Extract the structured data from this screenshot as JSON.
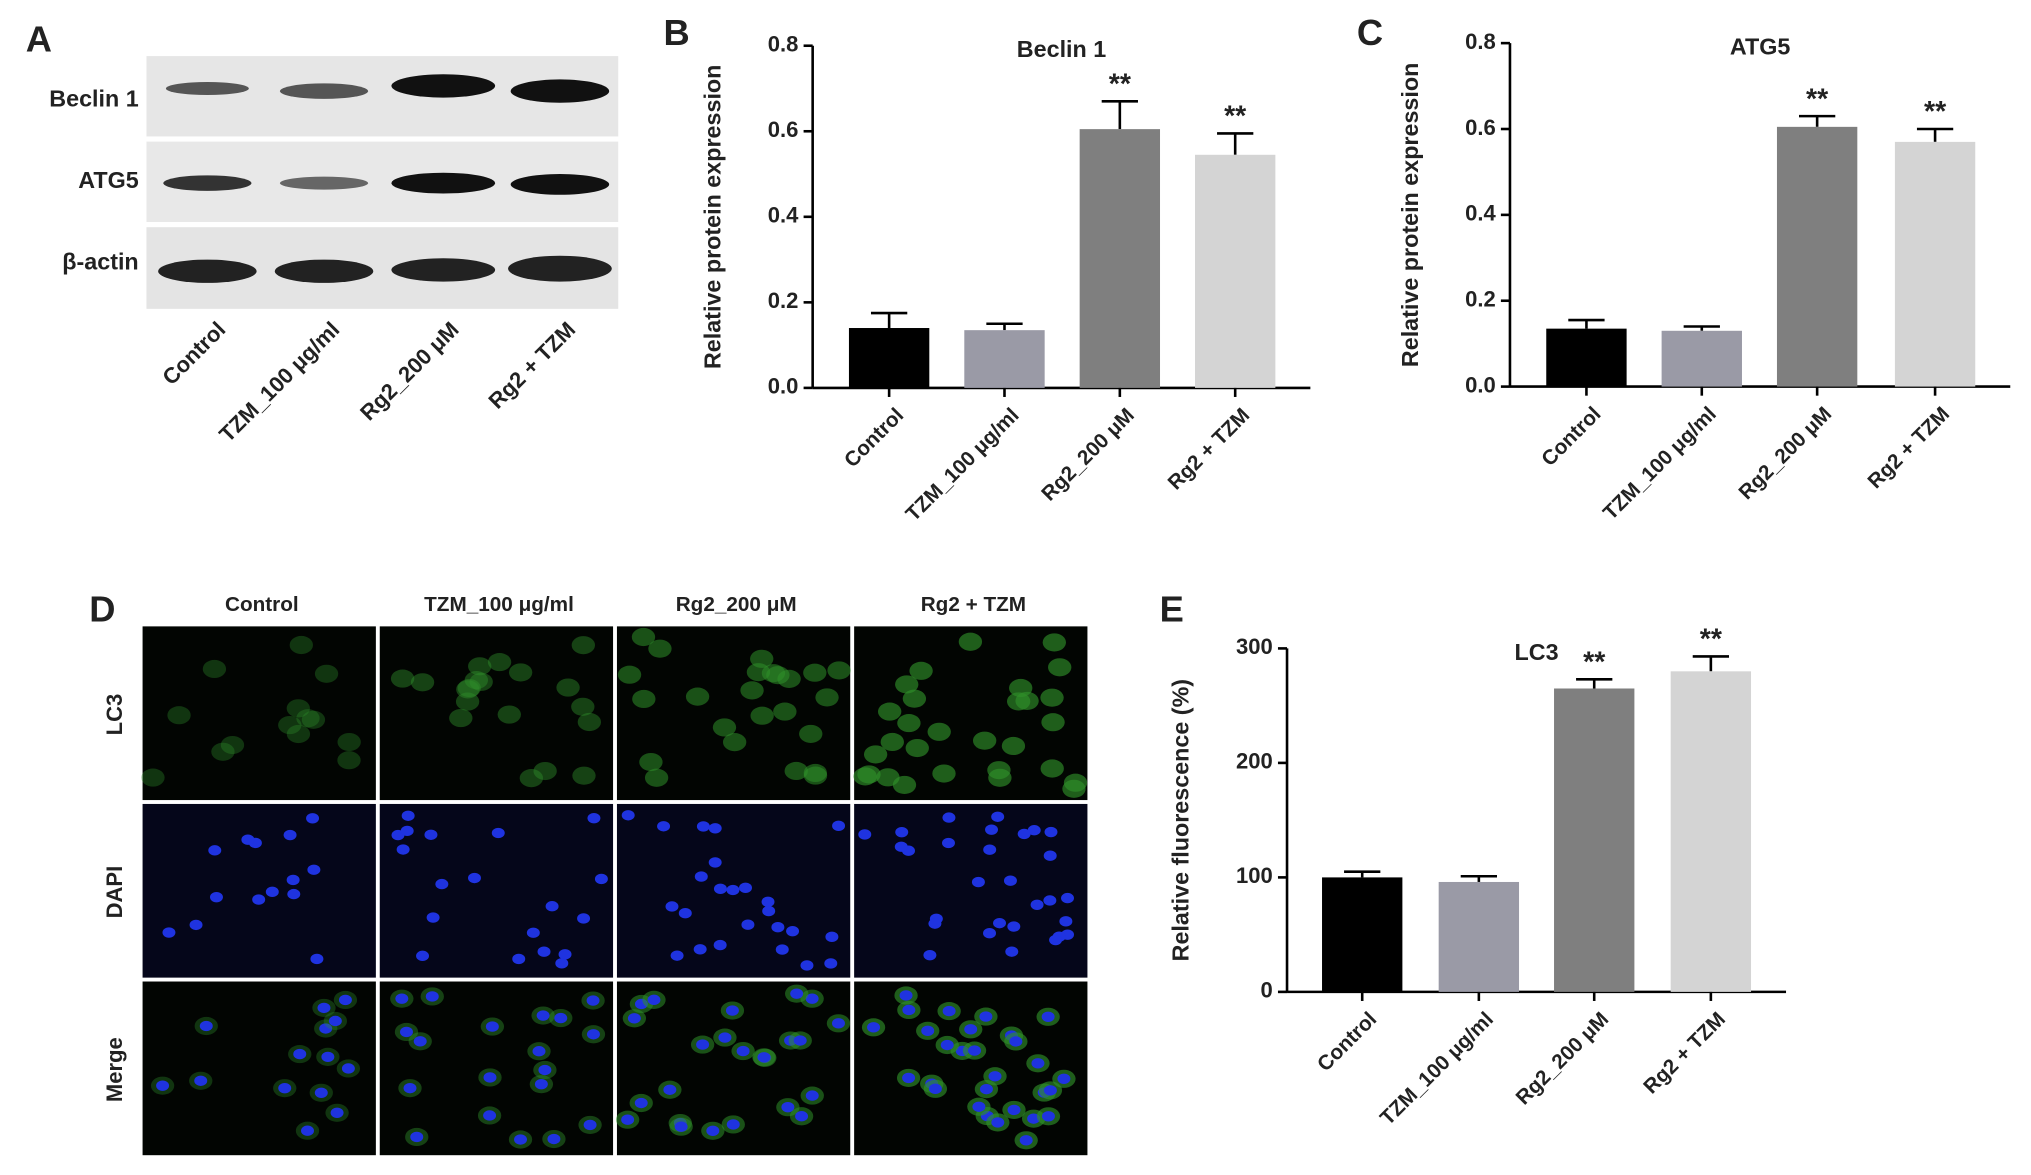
{
  "figure": {
    "panel_labels": [
      "A",
      "B",
      "C",
      "D",
      "E"
    ]
  },
  "blot": {
    "rows": [
      "Beclin 1",
      "ATG5",
      "β-actin"
    ],
    "lanes": [
      "Control",
      "TZM_100 μg/ml",
      "Rg2_200 μM",
      "Rg2 + TZM"
    ]
  },
  "microscopy": {
    "columns": [
      "Control",
      "TZM_100 μg/ml",
      "Rg2_200 μM",
      "Rg2 + TZM"
    ],
    "rows": [
      "LC3",
      "DAPI",
      "Merge"
    ]
  },
  "chart_data": [
    {
      "type": "bar",
      "title": "Beclin 1",
      "ylabel": "Relative protein expression",
      "categories": [
        "Control",
        "TZM_100 μg/ml",
        "Rg2_200 μM",
        "Rg2 + TZM"
      ],
      "values": [
        0.14,
        0.135,
        0.605,
        0.545
      ],
      "errors": [
        0.035,
        0.015,
        0.065,
        0.05
      ],
      "significance": [
        null,
        null,
        "**",
        "**"
      ],
      "colors": [
        "#000000",
        "#9a9aa6",
        "#7f7f7f",
        "#d4d4d4"
      ],
      "ylim": [
        0,
        0.8
      ],
      "yticks": [
        {
          "value": 0,
          "label": "0.0"
        },
        0.2,
        0.4,
        0.6,
        0.8
      ]
    },
    {
      "type": "bar",
      "title": "ATG5",
      "ylabel": "Relative protein expression",
      "categories": [
        "Control",
        "TZM_100 μg/ml",
        "Rg2_200 μM",
        "Rg2 + TZM"
      ],
      "values": [
        0.135,
        0.13,
        0.605,
        0.57
      ],
      "errors": [
        0.02,
        0.01,
        0.025,
        0.03
      ],
      "significance": [
        null,
        null,
        "**",
        "**"
      ],
      "colors": [
        "#000000",
        "#9a9aa6",
        "#7f7f7f",
        "#d4d4d4"
      ],
      "ylim": [
        0,
        0.8
      ],
      "yticks": [
        {
          "value": 0,
          "label": "0.0"
        },
        0.2,
        0.4,
        0.6,
        0.8
      ]
    },
    {
      "type": "bar",
      "title": "LC3",
      "ylabel": "Relative fluorescence (%)",
      "categories": [
        "Control",
        "TZM_100 μg/ml",
        "Rg2_200 μM",
        "Rg2 + TZM"
      ],
      "values": [
        100,
        96,
        265,
        280
      ],
      "errors": [
        5,
        5,
        8,
        13
      ],
      "significance": [
        null,
        null,
        "**",
        "**"
      ],
      "colors": [
        "#000000",
        "#9a9aa6",
        "#7f7f7f",
        "#d4d4d4"
      ],
      "ylim": [
        0,
        300
      ],
      "yticks": [
        0,
        100,
        200,
        300
      ]
    }
  ]
}
